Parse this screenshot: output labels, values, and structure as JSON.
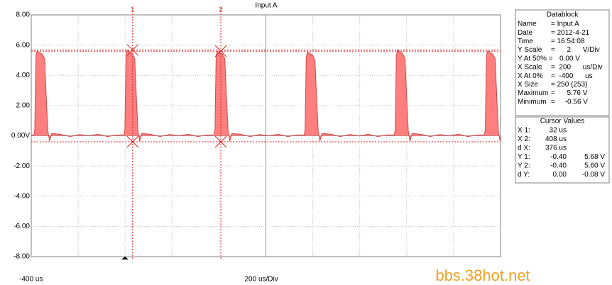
{
  "chart_data": {
    "type": "area",
    "title": "Input A",
    "color": "#ff7f7f",
    "line_color": "#d04848",
    "xlim": [
      -400,
      1600
    ],
    "ylim": [
      -8,
      8
    ],
    "xticks": [
      {
        "value": -400,
        "label": "-400 us"
      }
    ],
    "x_scale": {
      "value": 200,
      "label": "200 us/Div"
    },
    "yticks": [
      {
        "value": 8,
        "label": "8.00"
      },
      {
        "value": 6,
        "label": "6.00"
      },
      {
        "value": 4,
        "label": "4.00"
      },
      {
        "value": 2,
        "label": "2.00"
      },
      {
        "value": 0,
        "label": "0.00V"
      },
      {
        "value": -2,
        "label": "-2.00"
      },
      {
        "value": -4,
        "label": "-4.00"
      },
      {
        "value": -6,
        "label": "-6.00"
      },
      {
        "value": -8,
        "label": "-8.00"
      }
    ],
    "grid": true,
    "x": [
      -400,
      -389,
      -385,
      -380,
      -375,
      -365,
      -353,
      -343,
      -335,
      -329,
      -322,
      -313,
      -275,
      -235,
      -195,
      -155,
      -115,
      -75,
      -35,
      -5,
      -1,
      4,
      9,
      19,
      31,
      41,
      49,
      55,
      62,
      71,
      109,
      149,
      189,
      229,
      269,
      309,
      349,
      379,
      383,
      388,
      393,
      403,
      415,
      425,
      433,
      439,
      446,
      455,
      493,
      533,
      573,
      613,
      653,
      693,
      733,
      763,
      767,
      772,
      777,
      787,
      799,
      809,
      817,
      823,
      830,
      839,
      877,
      917,
      957,
      997,
      1037,
      1077,
      1117,
      1147,
      1151,
      1156,
      1161,
      1171,
      1183,
      1193,
      1201,
      1207,
      1214,
      1223,
      1261,
      1301,
      1341,
      1381,
      1421,
      1461,
      1501,
      1531,
      1535,
      1540,
      1545,
      1555,
      1567,
      1577,
      1585,
      1591,
      1598,
      1600
    ],
    "values": [
      0.05,
      0.05,
      0.4,
      5.3,
      5.6,
      5.5,
      5.4,
      5.1,
      2.2,
      0.3,
      -0.35,
      0.15,
      0.1,
      -0.05,
      0.08,
      0.0,
      0.1,
      -0.05,
      0.05,
      0.05,
      0.4,
      5.3,
      5.68,
      5.55,
      5.45,
      5.1,
      2.2,
      0.3,
      -0.35,
      0.15,
      0.1,
      -0.05,
      0.08,
      0.0,
      0.1,
      -0.05,
      0.05,
      0.05,
      0.4,
      5.3,
      5.6,
      5.5,
      5.4,
      5.1,
      2.2,
      0.3,
      -0.35,
      0.15,
      0.1,
      -0.05,
      0.08,
      0.0,
      0.1,
      -0.05,
      0.05,
      0.05,
      0.4,
      5.2,
      5.55,
      5.45,
      5.35,
      5.0,
      2.2,
      0.3,
      -0.35,
      0.15,
      0.1,
      -0.05,
      0.08,
      0.0,
      0.1,
      -0.05,
      0.05,
      0.05,
      0.4,
      5.3,
      5.7,
      5.55,
      5.45,
      5.1,
      2.2,
      0.3,
      -0.35,
      0.15,
      0.1,
      -0.05,
      0.08,
      0.0,
      0.1,
      -0.05,
      0.05,
      0.05,
      0.4,
      5.3,
      5.6,
      5.5,
      5.4,
      5.1,
      2.2,
      0.3,
      -0.35,
      -0.1
    ],
    "cursors": [
      {
        "label": "1",
        "x": 32,
        "y": [
          5.68,
          -0.4
        ]
      },
      {
        "label": "2",
        "x": 408,
        "y": [
          5.6,
          -0.4
        ]
      }
    ]
  },
  "datablock": {
    "title": "Datablock",
    "rows": [
      [
        "Name",
        "= Input A"
      ],
      [
        "Date",
        "= 2012-4-21"
      ],
      [
        "Time",
        "= 16:54:08"
      ],
      [
        "Y Scale",
        "=      2      V/Div"
      ],
      [
        "Y At 50% =",
        "0.00 V"
      ],
      [
        "X Scale",
        "=  200      us/Div"
      ],
      [
        "X At 0%",
        "=  -400      us"
      ],
      [
        "X Size",
        "= 250 (253)"
      ],
      [
        "Maximum",
        "=      5.76 V"
      ],
      [
        "Minimum",
        "=     -0.56 V"
      ]
    ]
  },
  "cursor_values": {
    "title": "Cursor Values",
    "rows": [
      [
        "X 1:",
        "32 us"
      ],
      [
        "X 2:",
        "408 us"
      ],
      [
        "d X:",
        "376 us"
      ],
      [
        "Y 1:",
        "-0.40",
        "5.68 V"
      ],
      [
        "Y 2:",
        "-0.40",
        "5.60 V"
      ],
      [
        "d Y:",
        "0.00",
        "-0.08 V"
      ]
    ]
  },
  "watermark": "bbs.38hot.net"
}
